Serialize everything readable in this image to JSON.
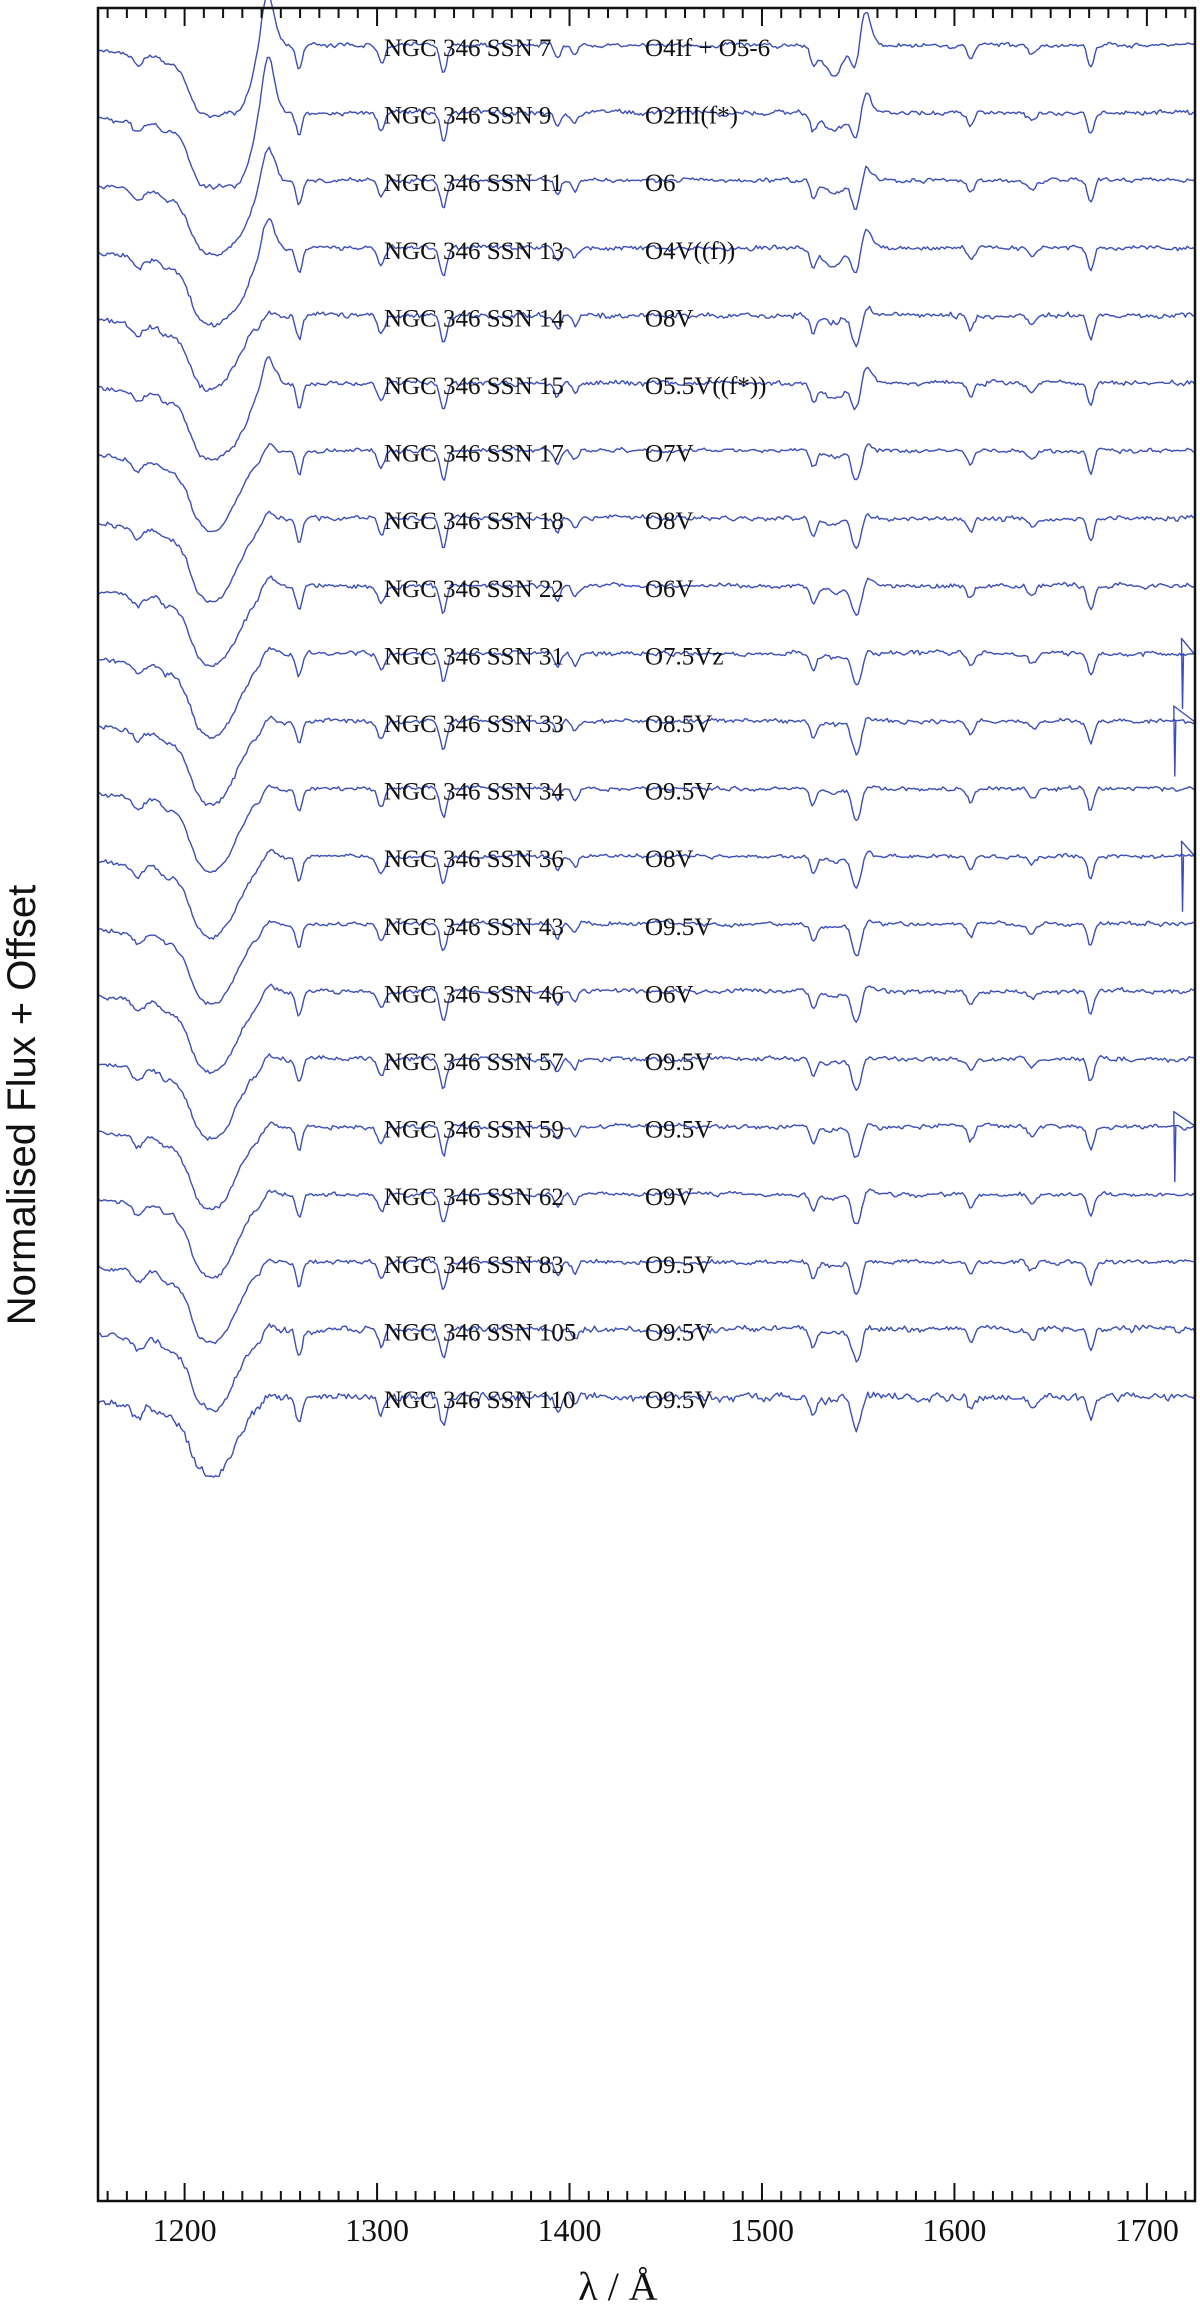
{
  "chart_data": {
    "type": "line",
    "xlabel": "λ / Å",
    "ylabel": "Normalised Flux + Offset",
    "xlim": [
      1155,
      1725
    ],
    "x_ticks": [
      1200,
      1300,
      1400,
      1500,
      1600,
      1700
    ],
    "x_minor_tick_step": 10,
    "grid": false,
    "line_color": "#3a4fb8",
    "lines": [
      {
        "wavelength": 1175.7,
        "depth": 0.35,
        "width": 2.5
      },
      {
        "wavelength": 1190.0,
        "depth": 0.18,
        "width": 2.0
      },
      {
        "wavelength": 1206.5,
        "depth": 0.3,
        "width": 3.0
      },
      {
        "wavelength": 1238.8,
        "depth": 0.2,
        "width": 2.0
      },
      {
        "wavelength": 1259.5,
        "depth": 0.8,
        "width": 1.6
      },
      {
        "wavelength": 1302.2,
        "depth": 0.6,
        "width": 1.8
      },
      {
        "wavelength": 1334.5,
        "depth": 0.95,
        "width": 1.7
      },
      {
        "wavelength": 1393.8,
        "depth": 0.45,
        "width": 1.5
      },
      {
        "wavelength": 1402.8,
        "depth": 0.35,
        "width": 1.5
      },
      {
        "wavelength": 1526.7,
        "depth": 0.55,
        "width": 1.6
      },
      {
        "wavelength": 1548.2,
        "depth": 0.75,
        "width": 2.0
      },
      {
        "wavelength": 1550.8,
        "depth": 0.65,
        "width": 2.0
      },
      {
        "wavelength": 1608.5,
        "depth": 0.45,
        "width": 1.6
      },
      {
        "wavelength": 1640.4,
        "depth": 0.3,
        "width": 2.0
      },
      {
        "wavelength": 1670.8,
        "depth": 0.75,
        "width": 1.6
      }
    ],
    "series": [
      {
        "name": "NGC 346 SSN 7",
        "sptype": "O4If + O5-6",
        "lya_depth": 2.2,
        "nv_pcygni": 1.8,
        "civ_pcygni": 1.4,
        "heii_em": 0.0,
        "noise": 0.1,
        "spike": 0
      },
      {
        "name": "NGC 346 SSN 9",
        "sptype": "O2III(f*)",
        "lya_depth": 2.3,
        "nv_pcygni": 2.0,
        "civ_pcygni": 0.9,
        "heii_em": 0.0,
        "noise": 0.12,
        "spike": 0
      },
      {
        "name": "NGC 346 SSN 11",
        "sptype": "O6",
        "lya_depth": 2.3,
        "nv_pcygni": 1.2,
        "civ_pcygni": 0.6,
        "heii_em": 0.0,
        "noise": 0.1,
        "spike": 0
      },
      {
        "name": "NGC 346 SSN 13",
        "sptype": "O4V((f))",
        "lya_depth": 2.4,
        "nv_pcygni": 1.1,
        "civ_pcygni": 0.9,
        "heii_em": 0.0,
        "noise": 0.11,
        "spike": 0
      },
      {
        "name": "NGC 346 SSN 14",
        "sptype": "O8V",
        "lya_depth": 2.3,
        "nv_pcygni": 0.2,
        "civ_pcygni": 0.3,
        "heii_em": 0.0,
        "noise": 0.13,
        "spike": 0
      },
      {
        "name": "NGC 346 SSN 15",
        "sptype": "O5.5V((f*))",
        "lya_depth": 2.4,
        "nv_pcygni": 1.0,
        "civ_pcygni": 0.8,
        "heii_em": 0.0,
        "noise": 0.11,
        "spike": 0
      },
      {
        "name": "NGC 346 SSN 17",
        "sptype": "O7V",
        "lya_depth": 2.5,
        "nv_pcygni": 0.3,
        "civ_pcygni": 0.3,
        "heii_em": 0.0,
        "noise": 0.1,
        "spike": 0
      },
      {
        "name": "NGC 346 SSN 18",
        "sptype": "O8V",
        "lya_depth": 2.6,
        "nv_pcygni": 0.3,
        "civ_pcygni": 0.3,
        "heii_em": 0.0,
        "noise": 0.11,
        "spike": 0
      },
      {
        "name": "NGC 346 SSN 22",
        "sptype": "O6V",
        "lya_depth": 2.5,
        "nv_pcygni": 0.4,
        "civ_pcygni": 0.3,
        "heii_em": 0.0,
        "noise": 0.11,
        "spike": 0
      },
      {
        "name": "NGC 346 SSN 31",
        "sptype": "O7.5Vz",
        "lya_depth": 2.6,
        "nv_pcygni": 0.3,
        "civ_pcygni": 0.2,
        "heii_em": 0.0,
        "noise": 0.11,
        "spike": 1
      },
      {
        "name": "NGC 346 SSN 33",
        "sptype": "O8.5V",
        "lya_depth": 2.6,
        "nv_pcygni": 0.2,
        "civ_pcygni": 0.2,
        "heii_em": 0.0,
        "noise": 0.11,
        "spike": 2
      },
      {
        "name": "NGC 346 SSN 34",
        "sptype": "O9.5V",
        "lya_depth": 2.6,
        "nv_pcygni": 0.2,
        "civ_pcygni": 0.2,
        "heii_em": 0.0,
        "noise": 0.1,
        "spike": 0
      },
      {
        "name": "NGC 346 SSN 36",
        "sptype": "O8V",
        "lya_depth": 2.5,
        "nv_pcygni": 0.3,
        "civ_pcygni": 0.2,
        "heii_em": 0.0,
        "noise": 0.1,
        "spike": 1
      },
      {
        "name": "NGC 346 SSN 43",
        "sptype": "O9.5V",
        "lya_depth": 2.5,
        "nv_pcygni": 0.2,
        "civ_pcygni": 0.2,
        "heii_em": 0.0,
        "noise": 0.1,
        "spike": 0
      },
      {
        "name": "NGC 346 SSN 46",
        "sptype": "O6V",
        "lya_depth": 2.5,
        "nv_pcygni": 0.3,
        "civ_pcygni": 0.3,
        "heii_em": 0.0,
        "noise": 0.11,
        "spike": 0
      },
      {
        "name": "NGC 346 SSN 57",
        "sptype": "O9.5V",
        "lya_depth": 2.5,
        "nv_pcygni": 0.2,
        "civ_pcygni": 0.2,
        "heii_em": 0.0,
        "noise": 0.11,
        "spike": 0
      },
      {
        "name": "NGC 346 SSN 59",
        "sptype": "O9.5V",
        "lya_depth": 2.6,
        "nv_pcygni": 0.2,
        "civ_pcygni": 0.2,
        "heii_em": 0.0,
        "noise": 0.11,
        "spike": 2
      },
      {
        "name": "NGC 346 SSN 62",
        "sptype": "O9V",
        "lya_depth": 2.6,
        "nv_pcygni": 0.2,
        "civ_pcygni": 0.2,
        "heii_em": 0.0,
        "noise": 0.1,
        "spike": 0
      },
      {
        "name": "NGC 346 SSN 83",
        "sptype": "O9.5V",
        "lya_depth": 2.5,
        "nv_pcygni": 0.2,
        "civ_pcygni": 0.2,
        "heii_em": 0.0,
        "noise": 0.11,
        "spike": 0
      },
      {
        "name": "NGC 346 SSN 105",
        "sptype": "O9.5V",
        "lya_depth": 2.5,
        "nv_pcygni": 0.2,
        "civ_pcygni": 0.2,
        "heii_em": 0.0,
        "noise": 0.15,
        "spike": 0
      },
      {
        "name": "NGC 346 SSN 110",
        "sptype": "O9.5V",
        "lya_depth": 2.4,
        "nv_pcygni": 0.2,
        "civ_pcygni": 0.2,
        "heii_em": 0.0,
        "noise": 0.18,
        "spike": 0
      }
    ]
  }
}
